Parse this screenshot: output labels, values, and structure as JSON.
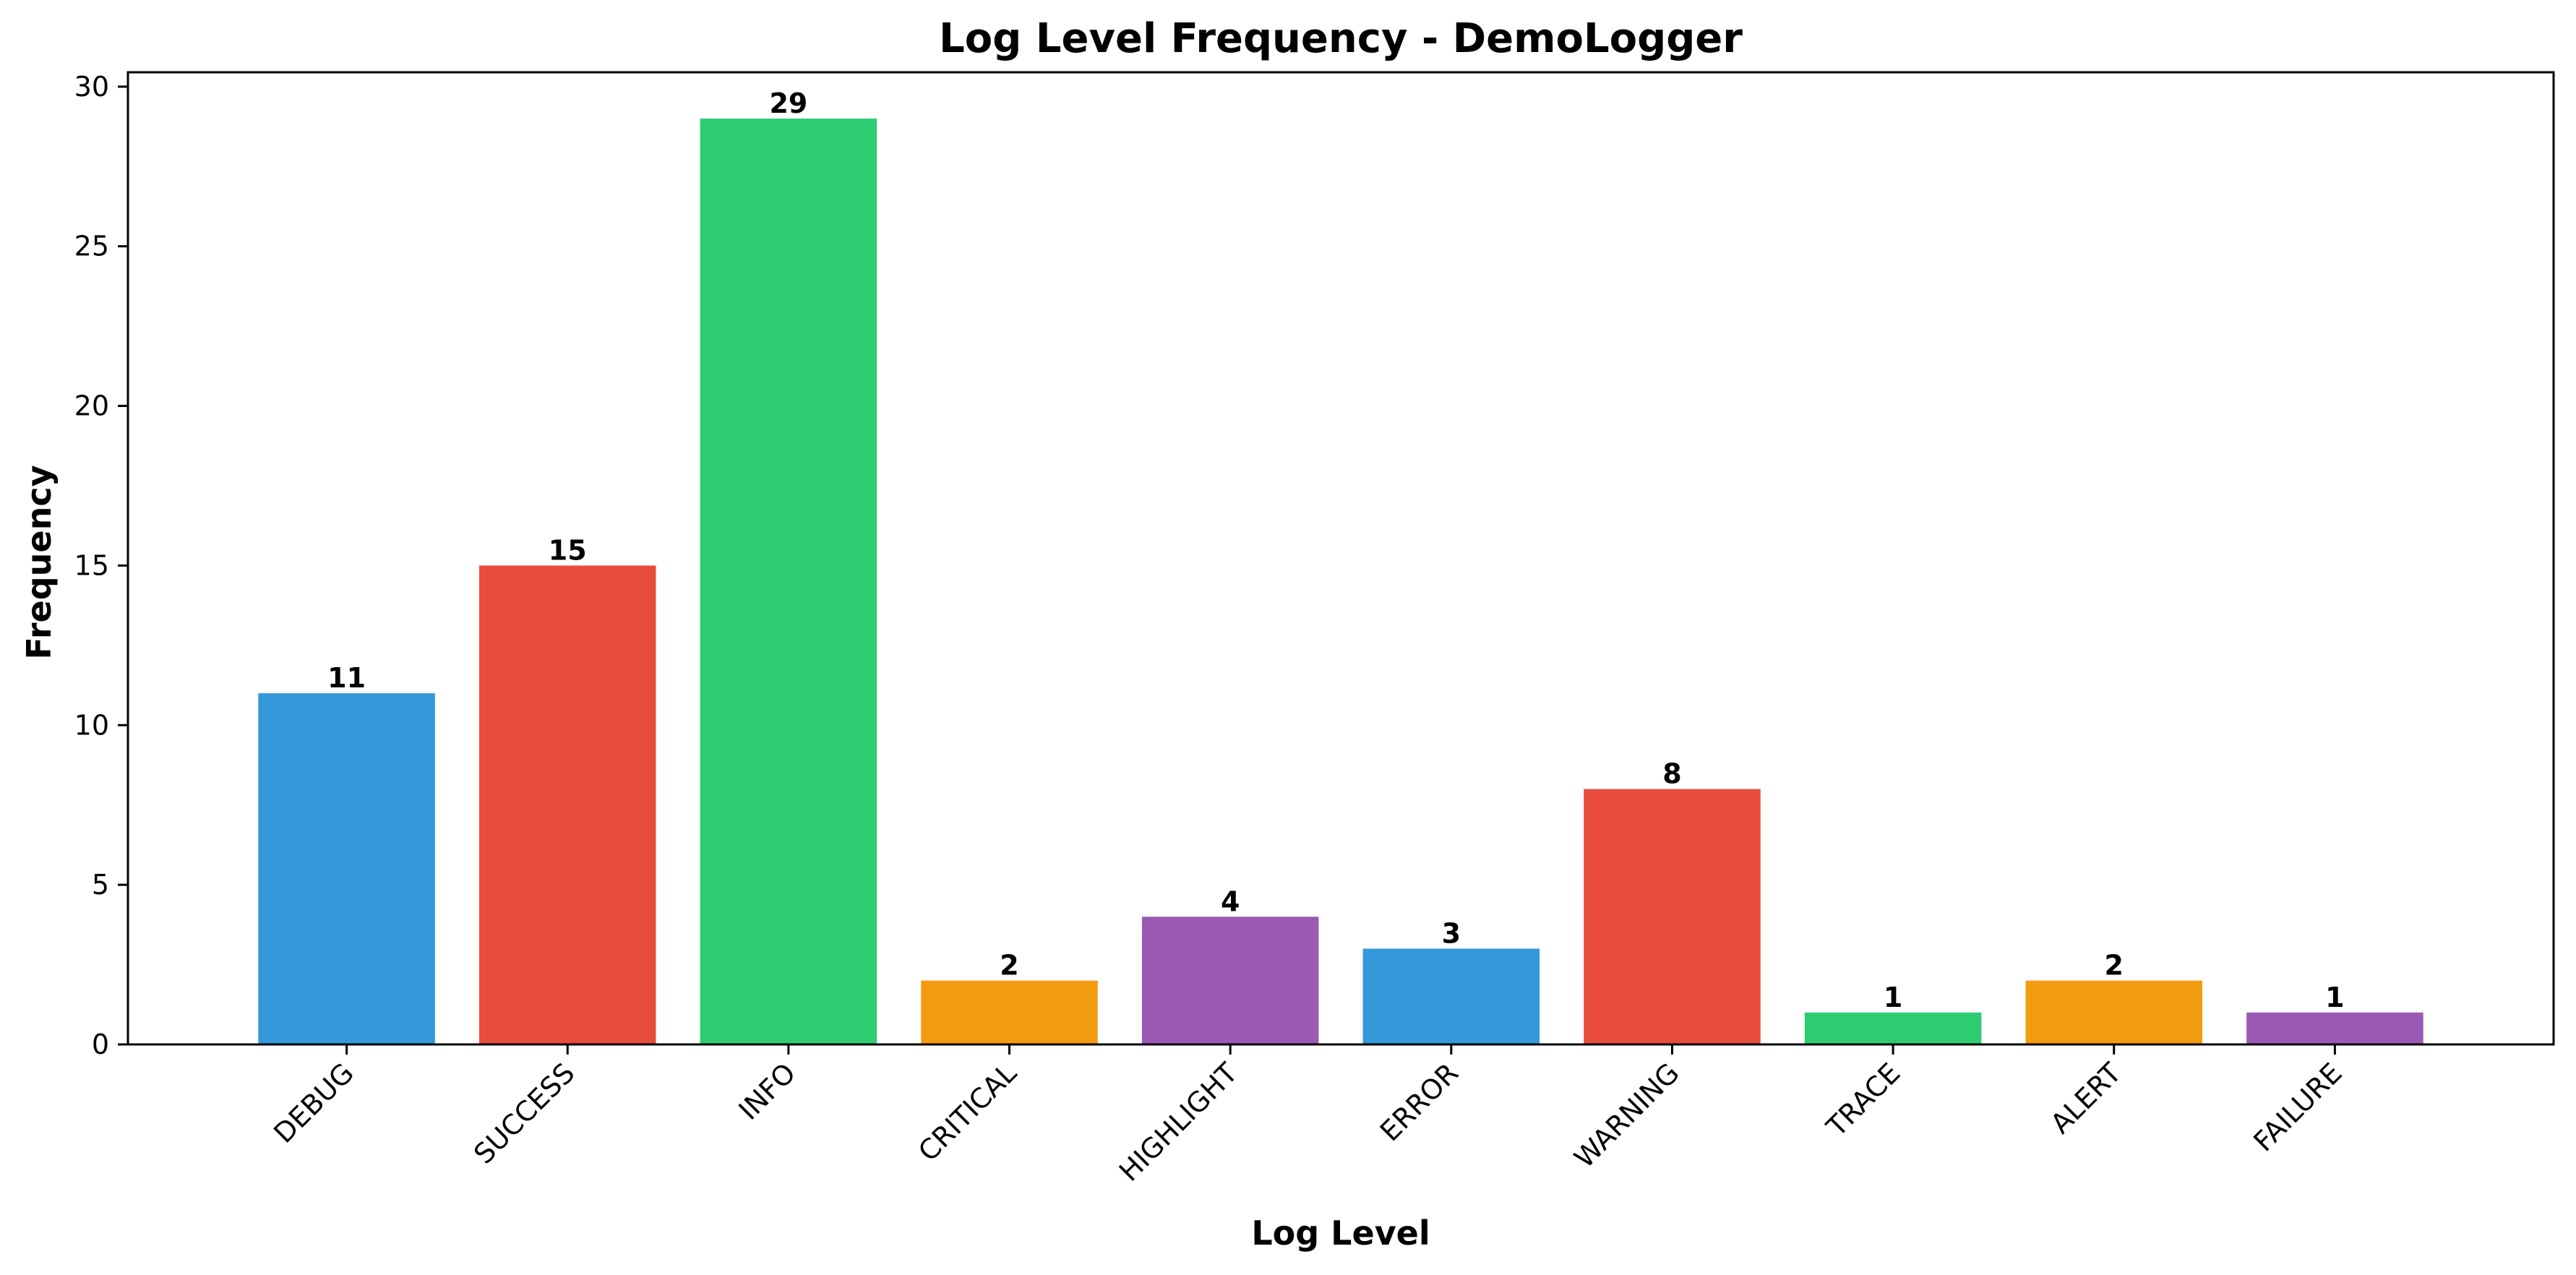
{
  "chart_data": {
    "type": "bar",
    "title": "Log Level Frequency - DemoLogger",
    "xlabel": "Log Level",
    "ylabel": "Frequency",
    "categories": [
      "DEBUG",
      "SUCCESS",
      "INFO",
      "CRITICAL",
      "HIGHLIGHT",
      "ERROR",
      "WARNING",
      "TRACE",
      "ALERT",
      "FAILURE"
    ],
    "values": [
      11,
      15,
      29,
      2,
      4,
      3,
      8,
      1,
      2,
      1
    ],
    "bar_colors": [
      "#3498db",
      "#e74c3c",
      "#2ecc71",
      "#f39c12",
      "#9b59b6",
      "#3498db",
      "#e74c3c",
      "#2ecc71",
      "#f39c12",
      "#9b59b6"
    ],
    "ylim": [
      0,
      30.45
    ],
    "yticks": [
      0,
      5,
      10,
      15,
      20,
      25,
      30
    ],
    "grid": false,
    "legend": "none",
    "data_labels": true
  }
}
